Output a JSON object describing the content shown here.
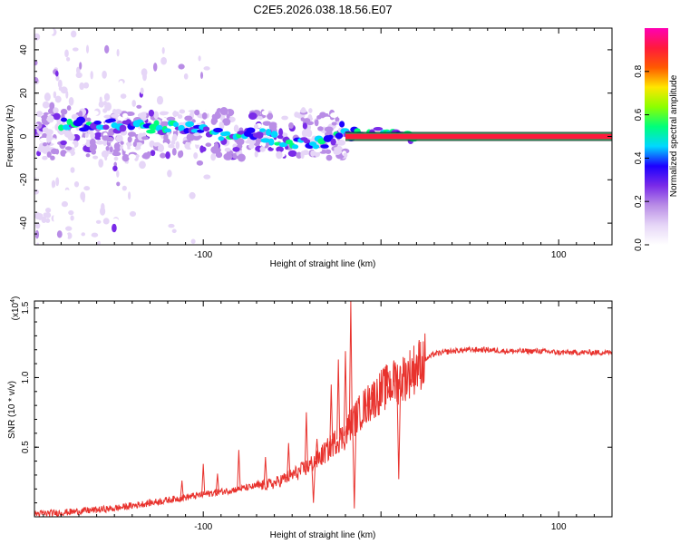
{
  "title": "C2E5.2026.038.18.56.E07",
  "chart_data": [
    {
      "type": "heatmap",
      "xlabel": "Height of straight line (km)",
      "ylabel": "Frequency (Hz)",
      "xlim": [
        -195,
        130
      ],
      "ylim": [
        -50,
        50
      ],
      "xticks": [
        -100,
        0,
        100
      ],
      "xtick_labels": [
        "-100",
        "100"
      ],
      "yticks": [
        40,
        20,
        0,
        -20,
        -40
      ],
      "yticks_labels": [
        "40",
        "20",
        "0",
        "-20",
        "-40"
      ],
      "colorbar": {
        "label": "Normalized spectral amplitude",
        "range": [
          0.0,
          1.0
        ],
        "ticks": [
          0.0,
          0.2,
          0.4,
          0.6,
          0.8
        ],
        "tick_labels": [
          "0.0",
          "0.2",
          "0.4",
          "0.6",
          "0.8"
        ],
        "colormap": [
          "#ffffff",
          "#e6d6f7",
          "#b98de6",
          "#7a2be8",
          "#1c00ff",
          "#00d8ff",
          "#00ff7a",
          "#8cff00",
          "#ffe600",
          "#ff5a00",
          "#ff1a3c",
          "#ff00b4"
        ]
      },
      "features": [
        {
          "name": "noise scatter",
          "x_range": [
            -195,
            -120
          ],
          "freq_range": [
            -50,
            50
          ],
          "amplitude": 0.1
        },
        {
          "name": "broadband band",
          "x_range": [
            -195,
            -20
          ],
          "freq_range": [
            -10,
            12
          ],
          "amplitude": 0.25
        },
        {
          "name": "carrier ridge",
          "points": [
            [
              -180,
              6
            ],
            [
              -150,
              5
            ],
            [
              -120,
              4
            ],
            [
              -100,
              3
            ],
            [
              -90,
              1
            ],
            [
              -80,
              -1
            ],
            [
              -70,
              2
            ],
            [
              -60,
              -1
            ],
            [
              -50,
              -4
            ],
            [
              -40,
              -2
            ],
            [
              -30,
              -3
            ],
            [
              -22,
              4
            ],
            [
              -15,
              1
            ],
            [
              0,
              2
            ],
            [
              10,
              1
            ],
            [
              20,
              0
            ]
          ],
          "amplitude": 0.45
        },
        {
          "name": "steady carrier",
          "x_range": [
            -20,
            130
          ],
          "frequency": 0,
          "amplitude": 1.0
        }
      ]
    },
    {
      "type": "line",
      "xlabel": "Height of straight line (km)",
      "ylabel": "SNR (10 * v/v)",
      "multiplier": "(x10",
      "multiplier_exp": "4",
      "multiplier_close": ")",
      "xlim": [
        -195,
        130
      ],
      "ylim": [
        0,
        1.55
      ],
      "xticks": [
        -100,
        0,
        100
      ],
      "xtick_labels": [
        "-100",
        "100"
      ],
      "yticks": [
        0.5,
        1.0,
        1.5
      ],
      "ytick_labels": [
        "0.5",
        "1.0",
        "1.5"
      ],
      "color": "#e8322d",
      "series": [
        {
          "name": "SNR",
          "x": [
            -195,
            -180,
            -160,
            -150,
            -140,
            -130,
            -120,
            -110,
            -100,
            -90,
            -80,
            -70,
            -60,
            -50,
            -45,
            -40,
            -35,
            -30,
            -25,
            -20,
            -18,
            -15,
            -10,
            -5,
            0,
            5,
            10,
            15,
            20,
            25,
            30,
            40,
            50,
            60,
            70,
            80,
            90,
            100,
            110,
            120,
            130
          ],
          "y": [
            0.02,
            0.03,
            0.05,
            0.06,
            0.08,
            0.1,
            0.12,
            0.14,
            0.16,
            0.18,
            0.2,
            0.22,
            0.24,
            0.3,
            0.33,
            0.37,
            0.42,
            0.48,
            0.55,
            0.58,
            0.65,
            0.7,
            0.78,
            0.84,
            0.9,
            0.95,
            0.98,
            1.02,
            1.08,
            1.13,
            1.17,
            1.19,
            1.2,
            1.2,
            1.19,
            1.19,
            1.19,
            1.18,
            1.18,
            1.18,
            1.18
          ]
        }
      ],
      "spikes": [
        {
          "x": -112,
          "y": 0.26
        },
        {
          "x": -100,
          "y": 0.38
        },
        {
          "x": -92,
          "y": 0.31
        },
        {
          "x": -80,
          "y": 0.48
        },
        {
          "x": -65,
          "y": 0.43
        },
        {
          "x": -52,
          "y": 0.53
        },
        {
          "x": -42,
          "y": 0.75
        },
        {
          "x": -36,
          "y": 0.56
        },
        {
          "x": -28,
          "y": 0.95
        },
        {
          "x": -24,
          "y": 1.13
        },
        {
          "x": -20,
          "y": 1.19
        },
        {
          "x": -17,
          "y": 1.55
        },
        {
          "x": -9,
          "y": 0.89
        },
        {
          "x": -5,
          "y": 0.95
        },
        {
          "x": 4,
          "y": 1.04
        },
        {
          "x": 8,
          "y": 1.11
        }
      ],
      "dips": [
        {
          "x": -15,
          "y": 0.06
        },
        {
          "x": 10,
          "y": 0.27
        },
        {
          "x": -38,
          "y": 0.1
        }
      ]
    }
  ]
}
